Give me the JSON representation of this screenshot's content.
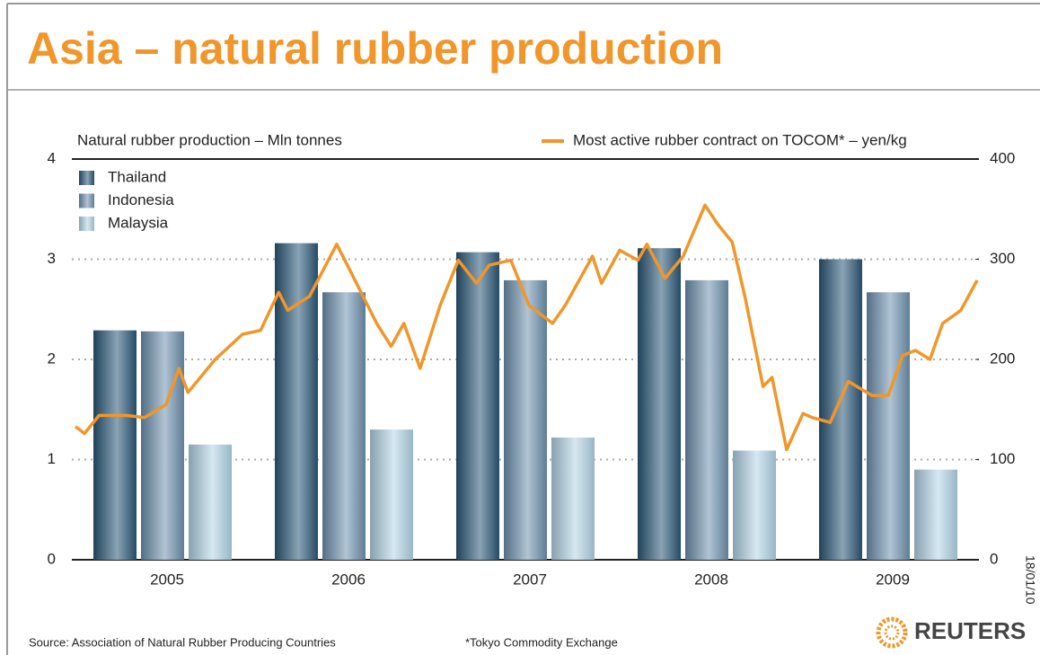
{
  "chart_data": {
    "type": "bar",
    "title": "Asia – natural rubber production",
    "y_label": "Natural rubber production – Mln tonnes",
    "y2_label": "Most active rubber contract on TOCOM* – yen/kg",
    "categories": [
      "2005",
      "2006",
      "2007",
      "2008",
      "2009"
    ],
    "ylim": [
      0,
      4
    ],
    "yticks": [
      0,
      1,
      2,
      3,
      4
    ],
    "y2lim": [
      0,
      400
    ],
    "y2ticks": [
      0,
      100,
      200,
      300,
      400
    ],
    "xlim": [
      2005,
      2010
    ],
    "grid": true,
    "legend": "upper left",
    "series": [
      {
        "name": "Thailand",
        "color": "#2b5878",
        "values": [
          2.29,
          3.16,
          3.07,
          3.11,
          3.0
        ]
      },
      {
        "name": "Indonesia",
        "color": "#6f93b0",
        "values": [
          2.28,
          2.67,
          2.79,
          2.79,
          2.67
        ]
      },
      {
        "name": "Malaysia",
        "color": "#b4d6e8",
        "values": [
          1.15,
          1.3,
          1.22,
          1.09,
          0.9
        ]
      },
      {
        "name": "Most active rubber contract on TOCOM* – yen/kg",
        "type": "line",
        "axis": "y2",
        "color": "#f0962a",
        "x": [
          2005.02,
          2005.07,
          2005.15,
          2005.3,
          2005.4,
          2005.52,
          2005.59,
          2005.64,
          2005.79,
          2005.94,
          2006.04,
          2006.14,
          2006.19,
          2006.31,
          2006.46,
          2006.53,
          2006.68,
          2006.76,
          2006.83,
          2006.92,
          2007.03,
          2007.13,
          2007.23,
          2007.3,
          2007.42,
          2007.52,
          2007.65,
          2007.72,
          2007.87,
          2007.92,
          2008.02,
          2008.12,
          2008.17,
          2008.27,
          2008.37,
          2008.49,
          2008.56,
          2008.64,
          2008.71,
          2008.81,
          2008.86,
          2008.94,
          2009.03,
          2009.08,
          2009.18,
          2009.28,
          2009.41,
          2009.5,
          2009.58,
          2009.65,
          2009.73,
          2009.8,
          2009.9,
          2009.99
        ],
        "values": [
          133,
          126,
          144,
          144,
          142,
          155,
          191,
          167,
          200,
          225,
          229,
          267,
          249,
          263,
          315,
          290,
          236,
          213,
          236,
          191,
          254,
          299,
          276,
          294,
          299,
          254,
          236,
          254,
          303,
          276,
          309,
          299,
          315,
          281,
          303,
          354,
          335,
          317,
          263,
          173,
          182,
          110,
          146,
          142,
          137,
          178,
          164,
          164,
          204,
          209,
          200,
          236,
          249,
          279
        ]
      }
    ],
    "date_stamp": "18/01/10",
    "source": "Source: Association of Natural Rubber Producing Countries",
    "note": "*Tokyo Commodity Exchange",
    "brand": "REUTERS"
  }
}
